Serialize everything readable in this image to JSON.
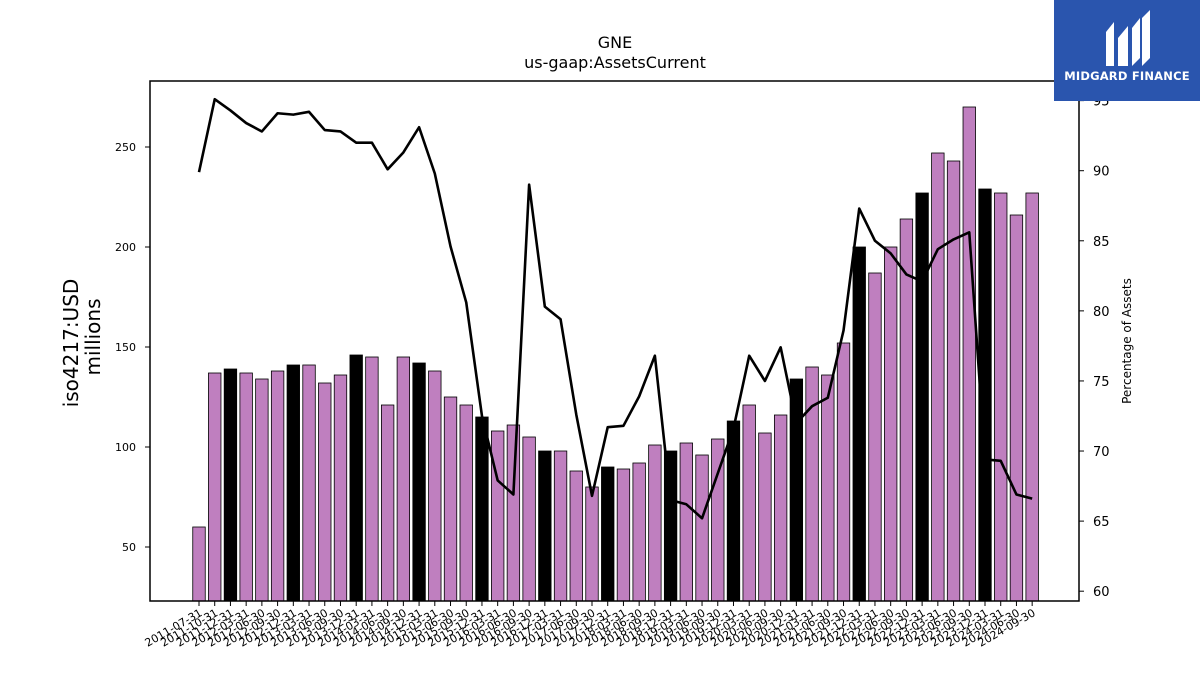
{
  "logo": {
    "brand": "MIDGARD FINANCE"
  },
  "chart_data": {
    "type": "bar",
    "title": "GNE",
    "subtitle": "us-gaap:AssetsCurrent",
    "ylabel_line1": "iso4217:USD",
    "ylabel_line2": "millions",
    "y2label": "Percentage of Assets",
    "ylim": [
      23,
      283
    ],
    "y2lim": [
      59.3,
      96.4
    ],
    "yticks": [
      50,
      100,
      150,
      200,
      250
    ],
    "y2ticks": [
      60,
      65,
      70,
      75,
      80,
      85,
      90,
      95
    ],
    "colors": {
      "bar": "#bf7fbf",
      "bar_highlight": "#000000",
      "line": "#000000"
    },
    "categories": [
      "2011-07-31",
      "2011-10-31",
      "2011-12-31",
      "2012-03-31",
      "2012-06-30",
      "2012-09-30",
      "2012-12-31",
      "2013-03-31",
      "2013-06-30",
      "2013-09-30",
      "2013-12-31",
      "2014-03-31",
      "2014-06-30",
      "2014-09-30",
      "2014-12-31",
      "2015-03-31",
      "2015-06-30",
      "2015-09-30",
      "2015-12-31",
      "2016-03-31",
      "2016-06-30",
      "2016-09-30",
      "2016-12-31",
      "2017-03-31",
      "2017-06-30",
      "2017-09-30",
      "2017-12-31",
      "2018-03-31",
      "2018-06-30",
      "2018-09-30",
      "2018-12-31",
      "2019-03-31",
      "2019-06-30",
      "2019-09-30",
      "2019-12-31",
      "2020-03-31",
      "2020-06-30",
      "2020-09-30",
      "2020-12-31",
      "2021-03-31",
      "2021-06-30",
      "2021-09-30",
      "2021-12-31",
      "2022-03-31",
      "2022-06-30",
      "2022-09-30",
      "2022-12-31",
      "2023-03-31",
      "2023-06-30",
      "2023-09-30",
      "2023-12-31",
      "2024-03-31",
      "2024-06-30",
      "2024-09-30"
    ],
    "values": [
      60,
      137,
      139,
      137,
      134,
      138,
      141,
      141,
      132,
      136,
      146,
      145,
      121,
      145,
      142,
      138,
      125,
      121,
      115,
      108,
      111,
      105,
      98,
      98,
      88,
      80,
      90,
      89,
      92,
      101,
      98,
      102,
      96,
      104,
      113,
      121,
      107,
      116,
      134,
      140,
      136,
      152,
      200,
      187,
      200,
      214,
      227,
      247,
      243,
      270,
      229,
      227,
      216,
      227
    ],
    "highlight": [
      false,
      false,
      true,
      false,
      false,
      false,
      true,
      false,
      false,
      false,
      true,
      false,
      false,
      false,
      true,
      false,
      false,
      false,
      true,
      false,
      false,
      false,
      true,
      false,
      false,
      false,
      true,
      false,
      false,
      false,
      true,
      false,
      false,
      false,
      true,
      false,
      false,
      false,
      true,
      false,
      false,
      false,
      true,
      false,
      false,
      false,
      true,
      false,
      false,
      false,
      true,
      false,
      false,
      false
    ],
    "series": [
      {
        "values": [
          89.9,
          95.1,
          94.3,
          93.4,
          92.8,
          94.1,
          94.0,
          94.2,
          92.9,
          92.8,
          92.0,
          92.0,
          90.1,
          91.3,
          93.1,
          89.8,
          84.6,
          80.6,
          72.5,
          67.9,
          66.9,
          89.0,
          80.3,
          79.4,
          72.6,
          66.8,
          71.7,
          71.8,
          73.9,
          76.8,
          66.5,
          66.2,
          65.2,
          68.4,
          71.6,
          76.8,
          75.0,
          77.4,
          72.0,
          73.2,
          73.8,
          78.6,
          87.3,
          85.0,
          84.1,
          82.6,
          82.1,
          84.4,
          85.1,
          85.6,
          69.4,
          69.3,
          66.9,
          66.6
        ]
      }
    ]
  }
}
